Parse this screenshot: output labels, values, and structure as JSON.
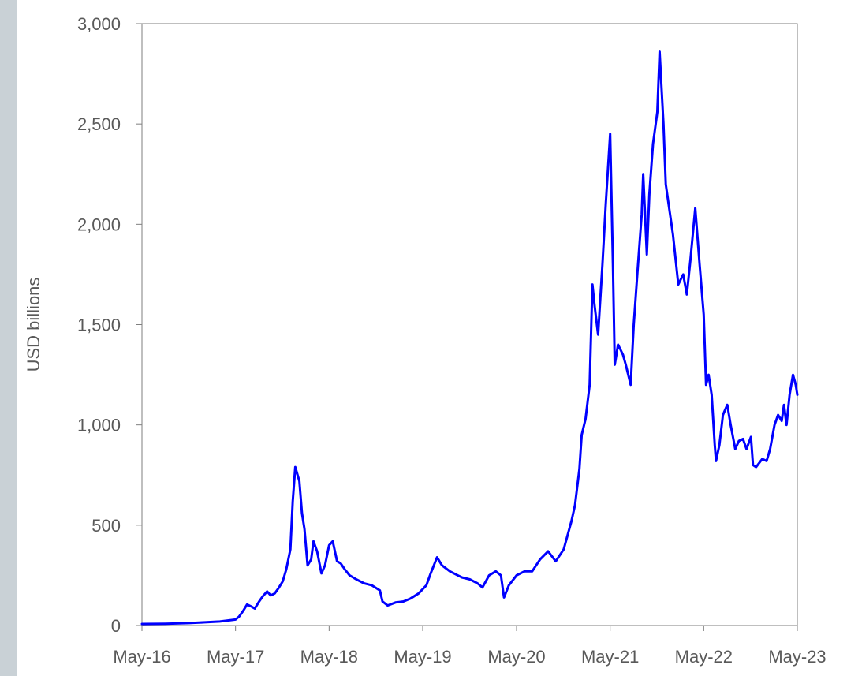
{
  "chart_data": {
    "type": "line",
    "title": "",
    "xlabel": "",
    "ylabel": "USD billions",
    "ylim": [
      0,
      3000
    ],
    "xlim": [
      "2016-05-01",
      "2023-05-01"
    ],
    "y_ticks": [
      {
        "value": 0,
        "label": "0"
      },
      {
        "value": 500,
        "label": "500"
      },
      {
        "value": 1000,
        "label": "1,000"
      },
      {
        "value": 1500,
        "label": "1,500"
      },
      {
        "value": 2000,
        "label": "2,000"
      },
      {
        "value": 2500,
        "label": "2,500"
      },
      {
        "value": 3000,
        "label": "3,000"
      }
    ],
    "x_ticks": [
      {
        "value": "2016-05-01",
        "label": "May-16"
      },
      {
        "value": "2017-05-01",
        "label": "May-17"
      },
      {
        "value": "2018-05-01",
        "label": "May-18"
      },
      {
        "value": "2019-05-01",
        "label": "May-19"
      },
      {
        "value": "2020-05-01",
        "label": "May-20"
      },
      {
        "value": "2021-05-01",
        "label": "May-21"
      },
      {
        "value": "2022-05-01",
        "label": "May-22"
      },
      {
        "value": "2023-05-01",
        "label": "May-23"
      }
    ],
    "grid": false,
    "legend": "none",
    "series": [
      {
        "color": "#0000ff",
        "x": [
          "2016-05-01",
          "2016-08-01",
          "2016-11-01",
          "2017-01-01",
          "2017-03-01",
          "2017-04-01",
          "2017-05-01",
          "2017-05-15",
          "2017-06-01",
          "2017-06-15",
          "2017-07-01",
          "2017-07-15",
          "2017-08-01",
          "2017-08-15",
          "2017-09-01",
          "2017-09-15",
          "2017-10-01",
          "2017-10-15",
          "2017-11-01",
          "2017-11-15",
          "2017-12-01",
          "2017-12-10",
          "2017-12-20",
          "2018-01-05",
          "2018-01-15",
          "2018-01-25",
          "2018-02-06",
          "2018-02-20",
          "2018-03-01",
          "2018-03-15",
          "2018-04-01",
          "2018-04-15",
          "2018-05-01",
          "2018-05-15",
          "2018-06-01",
          "2018-06-15",
          "2018-07-01",
          "2018-07-20",
          "2018-08-15",
          "2018-09-15",
          "2018-10-15",
          "2018-11-15",
          "2018-11-25",
          "2018-12-15",
          "2019-01-15",
          "2019-02-15",
          "2019-03-15",
          "2019-04-15",
          "2019-05-15",
          "2019-06-01",
          "2019-06-26",
          "2019-07-15",
          "2019-08-15",
          "2019-09-15",
          "2019-10-01",
          "2019-11-01",
          "2019-12-01",
          "2019-12-20",
          "2020-01-15",
          "2020-02-10",
          "2020-03-01",
          "2020-03-13",
          "2020-04-01",
          "2020-05-01",
          "2020-06-01",
          "2020-07-01",
          "2020-08-01",
          "2020-09-01",
          "2020-10-01",
          "2020-11-01",
          "2020-12-01",
          "2020-12-15",
          "2021-01-01",
          "2021-01-10",
          "2021-01-25",
          "2021-02-10",
          "2021-02-21",
          "2021-03-01",
          "2021-03-15",
          "2021-04-01",
          "2021-04-14",
          "2021-05-01",
          "2021-05-12",
          "2021-05-19",
          "2021-06-01",
          "2021-06-20",
          "2021-07-01",
          "2021-07-20",
          "2021-08-01",
          "2021-08-15",
          "2021-09-01",
          "2021-09-07",
          "2021-09-21",
          "2021-10-01",
          "2021-10-15",
          "2021-11-01",
          "2021-11-10",
          "2021-11-25",
          "2021-12-04",
          "2021-12-15",
          "2022-01-01",
          "2022-01-22",
          "2022-02-10",
          "2022-02-24",
          "2022-03-10",
          "2022-03-29",
          "2022-04-15",
          "2022-05-01",
          "2022-05-10",
          "2022-05-20",
          "2022-06-01",
          "2022-06-13",
          "2022-06-18",
          "2022-07-01",
          "2022-07-15",
          "2022-08-01",
          "2022-08-14",
          "2022-09-01",
          "2022-09-15",
          "2022-10-01",
          "2022-10-15",
          "2022-11-01",
          "2022-11-09",
          "2022-11-21",
          "2022-12-15",
          "2023-01-01",
          "2023-01-15",
          "2023-02-01",
          "2023-02-15",
          "2023-03-01",
          "2023-03-10",
          "2023-03-20",
          "2023-04-01",
          "2023-04-14",
          "2023-04-25",
          "2023-05-01"
        ],
        "y": [
          8,
          9,
          12,
          16,
          20,
          25,
          30,
          45,
          75,
          105,
          95,
          85,
          120,
          145,
          170,
          150,
          160,
          185,
          220,
          280,
          380,
          620,
          790,
          720,
          560,
          480,
          300,
          330,
          420,
          370,
          260,
          300,
          400,
          420,
          320,
          310,
          280,
          250,
          230,
          210,
          200,
          175,
          120,
          100,
          115,
          120,
          135,
          160,
          200,
          260,
          340,
          300,
          270,
          250,
          240,
          230,
          210,
          190,
          250,
          270,
          250,
          140,
          200,
          250,
          270,
          270,
          330,
          370,
          320,
          380,
          520,
          600,
          780,
          950,
          1030,
          1200,
          1700,
          1600,
          1450,
          1800,
          2100,
          2450,
          1800,
          1300,
          1400,
          1350,
          1300,
          1200,
          1500,
          1750,
          2050,
          2250,
          1850,
          2150,
          2400,
          2560,
          2860,
          2500,
          2200,
          2100,
          1950,
          1700,
          1750,
          1650,
          1820,
          2080,
          1800,
          1550,
          1200,
          1250,
          1150,
          900,
          820,
          900,
          1050,
          1100,
          1000,
          880,
          920,
          930,
          880,
          940,
          800,
          790,
          830,
          820,
          880,
          1000,
          1050,
          1020,
          1100,
          1000,
          1150,
          1250,
          1200,
          1150
        ]
      }
    ]
  }
}
